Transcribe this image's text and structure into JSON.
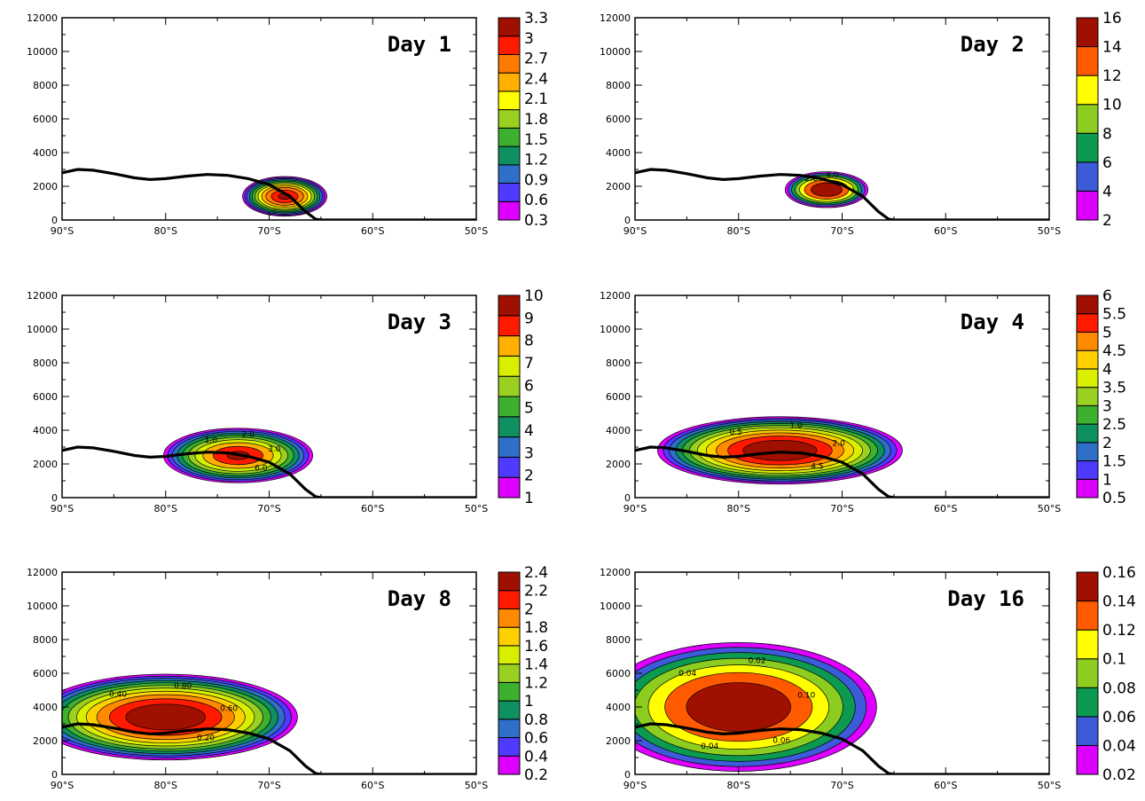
{
  "figure": {
    "x_ticks": [
      "90°S",
      "80°S",
      "70°S",
      "60°S",
      "50°S"
    ],
    "y_ticks": [
      "0",
      "2000",
      "4000",
      "6000",
      "8000",
      "10000",
      "12000"
    ]
  },
  "chart_data": [
    {
      "type": "contour",
      "panel_label": "Day 1",
      "xlim": [
        -90,
        -50
      ],
      "ylim": [
        0,
        12000
      ],
      "colorbar": {
        "levels": [
          "0.3",
          "0.6",
          "0.9",
          "1.2",
          "1.5",
          "1.8",
          "2.1",
          "2.4",
          "2.7",
          "3",
          "3.3"
        ],
        "colors": [
          "#dd00ff",
          "#4f3aff",
          "#2f6fc8",
          "#0e9060",
          "#3eb030",
          "#9ad020",
          "#ffff00",
          "#ffb000",
          "#ff7a00",
          "#ff1a00",
          "#a01000"
        ]
      },
      "contour_labels": [],
      "field": {
        "center_lat": -68.5,
        "center_z": 1400,
        "width_deg": 4.5,
        "height_m": 1300,
        "peak": 3.3
      }
    },
    {
      "type": "contour",
      "panel_label": "Day 2",
      "xlim": [
        -90,
        -50
      ],
      "ylim": [
        0,
        12000
      ],
      "colorbar": {
        "levels": [
          "2",
          "4",
          "6",
          "8",
          "10",
          "12",
          "14",
          "16"
        ],
        "colors": [
          "#dd00ff",
          "#3d5ad8",
          "#0c9a50",
          "#8ccd20",
          "#ffff00",
          "#ff5a00",
          "#a01000"
        ]
      },
      "contour_labels": [
        "2.0",
        "4.0"
      ],
      "field": {
        "center_lat": -71.5,
        "center_z": 1800,
        "width_deg": 4.5,
        "height_m": 1200,
        "peak": 16
      }
    },
    {
      "type": "contour",
      "panel_label": "Day 3",
      "xlim": [
        -90,
        -50
      ],
      "ylim": [
        0,
        12000
      ],
      "colorbar": {
        "levels": [
          "1",
          "2",
          "3",
          "4",
          "5",
          "6",
          "7",
          "8",
          "9",
          "10"
        ],
        "colors": [
          "#dd00ff",
          "#4f3aff",
          "#2f6fc8",
          "#0e9060",
          "#3eb030",
          "#9ad020",
          "#d8f000",
          "#ffb000",
          "#ff1a00",
          "#a01000"
        ]
      },
      "contour_labels": [
        "1.0",
        "2.0",
        "3.0",
        "6.0"
      ],
      "field": {
        "center_lat": -73,
        "center_z": 2500,
        "width_deg": 8,
        "height_m": 1800,
        "peak": 10
      }
    },
    {
      "type": "contour",
      "panel_label": "Day 4",
      "xlim": [
        -90,
        -50
      ],
      "ylim": [
        0,
        12000
      ],
      "colorbar": {
        "levels": [
          "0.5",
          "1",
          "1.5",
          "2",
          "2.5",
          "3",
          "3.5",
          "4",
          "4.5",
          "5",
          "5.5",
          "6"
        ],
        "colors": [
          "#dd00ff",
          "#4f3aff",
          "#2f6fc8",
          "#0e9060",
          "#3eb030",
          "#9ad020",
          "#d8f000",
          "#ffd000",
          "#ff8a00",
          "#ff1a00",
          "#a01000"
        ]
      },
      "contour_labels": [
        "0.5",
        "1.0",
        "2.0",
        "4.5"
      ],
      "field": {
        "center_lat": -76,
        "center_z": 2800,
        "width_deg": 13,
        "height_m": 2200,
        "peak": 6
      }
    },
    {
      "type": "contour",
      "panel_label": "Day 8",
      "xlim": [
        -90,
        -50
      ],
      "ylim": [
        0,
        12000
      ],
      "colorbar": {
        "levels": [
          "0.2",
          "0.4",
          "0.6",
          "0.8",
          "1",
          "1.2",
          "1.4",
          "1.6",
          "1.8",
          "2",
          "2.2",
          "2.4"
        ],
        "colors": [
          "#dd00ff",
          "#4f3aff",
          "#2f6fc8",
          "#0e9060",
          "#3eb030",
          "#9ad020",
          "#d8f000",
          "#ffd000",
          "#ff8a00",
          "#ff1a00",
          "#a01000"
        ]
      },
      "contour_labels": [
        "0.40",
        "0.80",
        "0.60",
        "0.20"
      ],
      "field": {
        "center_lat": -80,
        "center_z": 3400,
        "width_deg": 14,
        "height_m": 2800,
        "peak": 2.4
      }
    },
    {
      "type": "contour",
      "panel_label": "Day 16",
      "xlim": [
        -90,
        -50
      ],
      "ylim": [
        0,
        12000
      ],
      "colorbar": {
        "levels": [
          "0.02",
          "0.04",
          "0.06",
          "0.08",
          "0.1",
          "0.12",
          "0.14",
          "0.16"
        ],
        "colors": [
          "#dd00ff",
          "#3d5ad8",
          "#0c9a50",
          "#8ccd20",
          "#ffff00",
          "#ff5a00",
          "#a01000"
        ]
      },
      "contour_labels": [
        "0.04",
        "0.02",
        "0.10",
        "0.06",
        "0.04"
      ],
      "field": {
        "center_lat": -80,
        "center_z": 4000,
        "width_deg": 15,
        "height_m": 4300,
        "peak": 0.16
      }
    }
  ],
  "topography": {
    "lat": [
      -90,
      -88.5,
      -87,
      -85,
      -83,
      -81.5,
      -80,
      -78,
      -76,
      -74,
      -72,
      -70,
      -68,
      -66.5,
      -65.5,
      -65,
      -60,
      -55,
      -50
    ],
    "height_m": [
      2800,
      3000,
      2950,
      2750,
      2500,
      2400,
      2450,
      2600,
      2700,
      2650,
      2450,
      2100,
      1400,
      500,
      50,
      0,
      0,
      0,
      0
    ]
  }
}
